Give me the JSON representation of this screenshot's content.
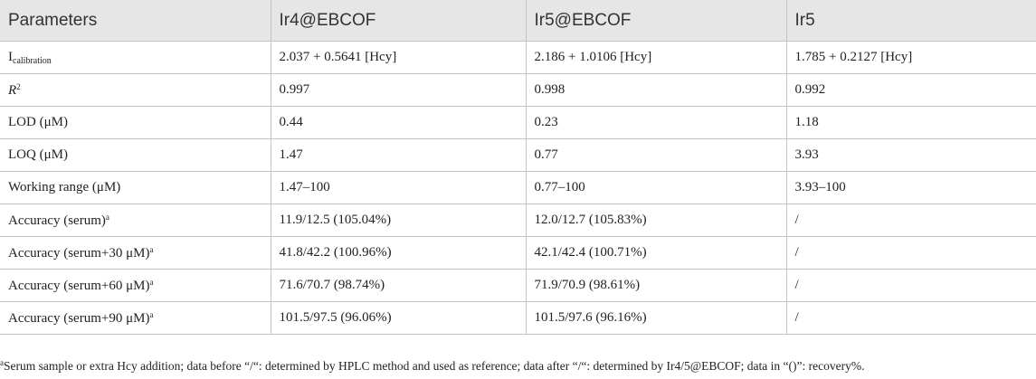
{
  "table": {
    "headers": [
      "Parameters",
      "Ir4@EBCOF",
      "Ir5@EBCOF",
      "Ir5"
    ],
    "rows": [
      {
        "param": "I",
        "param_sub": "calibration",
        "values": [
          "2.037 + 0.5641 [Hcy]",
          "2.186 + 1.0106 [Hcy]",
          "1.785 + 0.2127 [Hcy]"
        ]
      },
      {
        "param": "R",
        "param_sup": "2",
        "values": [
          "0.997",
          "0.998",
          "0.992"
        ]
      },
      {
        "param": "LOD (μM)",
        "values": [
          "0.44",
          "0.23",
          "1.18"
        ]
      },
      {
        "param": "LOQ (μM)",
        "values": [
          "1.47",
          "0.77",
          "3.93"
        ]
      },
      {
        "param": "Working range (μM)",
        "values": [
          "1.47–100",
          "0.77–100",
          "3.93–100"
        ]
      },
      {
        "param": "Accuracy (serum)",
        "param_sup": "a",
        "values": [
          "11.9/12.5 (105.04%)",
          "12.0/12.7 (105.83%)",
          "/"
        ]
      },
      {
        "param": "Accuracy (serum+30 μM)",
        "param_sup": "a",
        "values": [
          "41.8/42.2 (100.96%)",
          "42.1/42.4 (100.71%)",
          "/"
        ]
      },
      {
        "param": "Accuracy (serum+60 μM)",
        "param_sup": "a",
        "values": [
          "71.6/70.7 (98.74%)",
          "71.9/70.9 (98.61%)",
          "/"
        ]
      },
      {
        "param": "Accuracy (serum+90 μM)",
        "param_sup": "a",
        "values": [
          "101.5/97.5 (96.06%)",
          "101.5/97.6 (96.16%)",
          "/"
        ]
      }
    ]
  },
  "footnote": {
    "marker": "a",
    "text": "Serum sample or extra Hcy addition; data before “/“: determined by HPLC method and used as reference; data after “/“: determined by Ir4/5@EBCOF; data in “()”: recovery%."
  }
}
